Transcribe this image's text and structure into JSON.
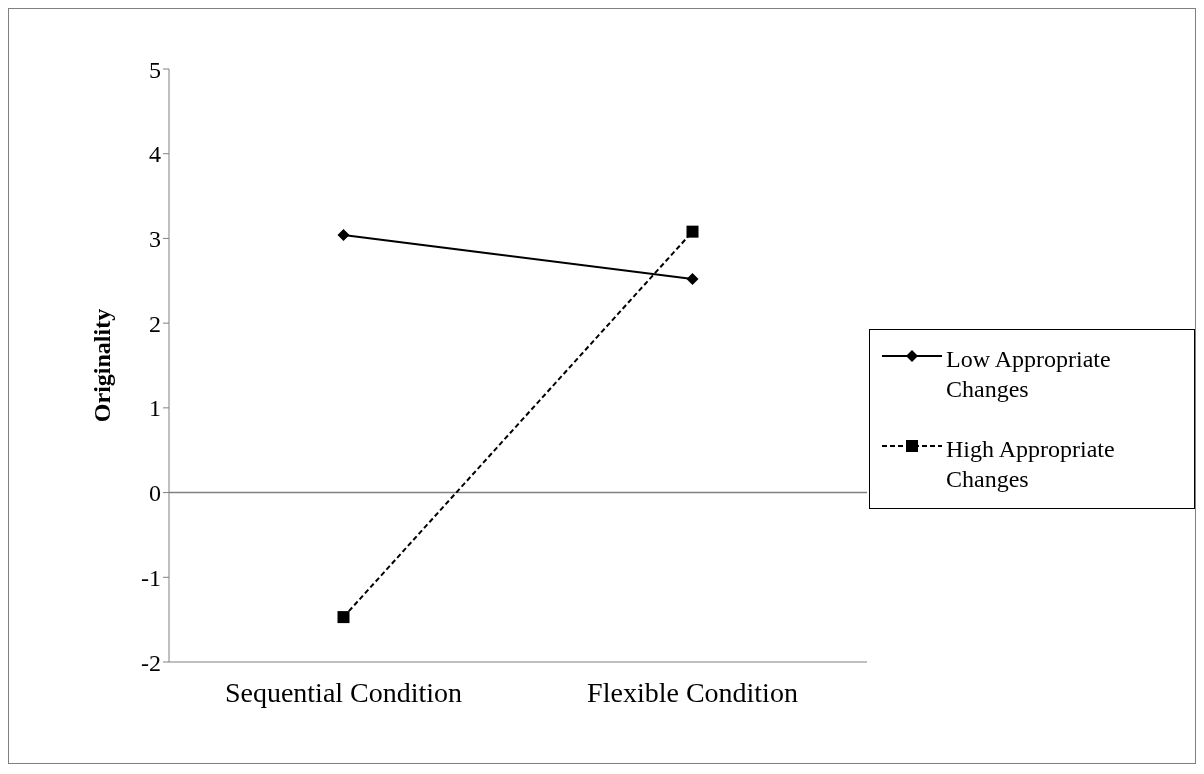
{
  "chart_data": {
    "type": "line",
    "ylabel": "Originality",
    "categories": [
      "Sequential Condition",
      "Flexible Condition"
    ],
    "series": [
      {
        "name": "Low Appropriate Changes",
        "color": "#000000",
        "values": [
          3.04,
          2.52
        ],
        "marker": "diamond",
        "line_style": "solid"
      },
      {
        "name": "High Appropriate Changes",
        "color": "#000000",
        "values": [
          -1.47,
          3.08
        ],
        "marker": "square",
        "line_style": "dashed"
      }
    ],
    "ylim": [
      -2,
      5
    ],
    "yticks": [
      -2,
      -1,
      0,
      1,
      2,
      3,
      4,
      5
    ],
    "ref_lines": [
      {
        "axis": "y",
        "value": 0,
        "color": "#808080"
      }
    ],
    "grid": false,
    "legend": "right"
  }
}
